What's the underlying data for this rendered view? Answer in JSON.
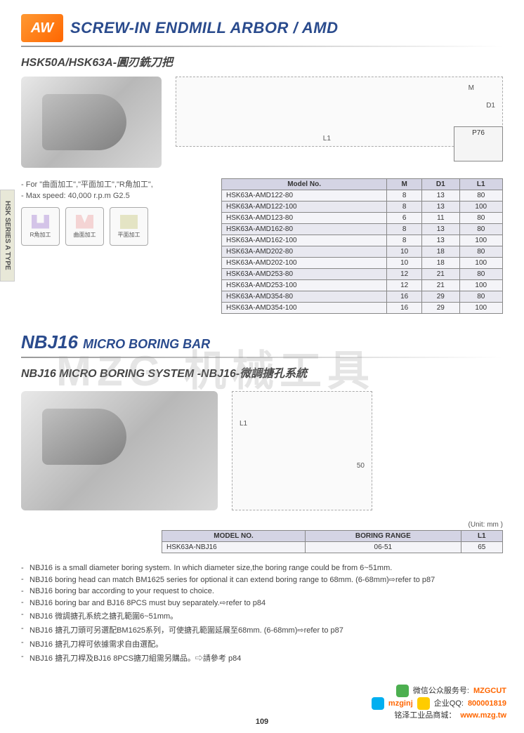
{
  "logo_text": "AW",
  "section1": {
    "title": "SCREW-IN ENDMILL ARBOR / AMD",
    "subtitle": "HSK50A/HSK63A-圓刃銑刀把",
    "dims": {
      "m": "M",
      "d1": "D1",
      "l1": "L1"
    },
    "p76": "P76",
    "notes": {
      "line1": "- For \"曲面加工\",\"平面加工\",\"R角加工\",",
      "line2": "- Max speed: 40,000 r.p.m G2.5"
    },
    "icons": {
      "a": "R角加工",
      "b": "曲面加工",
      "c": "平面加工"
    },
    "table": {
      "headers": [
        "Model No.",
        "M",
        "D1",
        "L1"
      ],
      "rows": [
        [
          "HSK63A-AMD122-80",
          "8",
          "13",
          "80"
        ],
        [
          "HSK63A-AMD122-100",
          "8",
          "13",
          "100"
        ],
        [
          "HSK63A-AMD123-80",
          "6",
          "11",
          "80"
        ],
        [
          "HSK63A-AMD162-80",
          "8",
          "13",
          "80"
        ],
        [
          "HSK63A-AMD162-100",
          "8",
          "13",
          "100"
        ],
        [
          "HSK63A-AMD202-80",
          "10",
          "18",
          "80"
        ],
        [
          "HSK63A-AMD202-100",
          "10",
          "18",
          "100"
        ],
        [
          "HSK63A-AMD253-80",
          "12",
          "21",
          "80"
        ],
        [
          "HSK63A-AMD253-100",
          "12",
          "21",
          "100"
        ],
        [
          "HSK63A-AMD354-80",
          "16",
          "29",
          "80"
        ],
        [
          "HSK63A-AMD354-100",
          "16",
          "29",
          "100"
        ]
      ]
    }
  },
  "side_tab": "HSK SERIES A TYPE",
  "section2": {
    "title_big": "NBJ16",
    "title_small": "MICRO BORING BAR",
    "subtitle": "NBJ16 MICRO BORING SYSTEM -NBJ16-微調搪孔系統",
    "dims": {
      "l1": "L1",
      "d50": "50"
    },
    "unit": "(Unit: mm )",
    "table": {
      "headers": [
        "MODEL NO.",
        "BORING RANGE",
        "L1"
      ],
      "rows": [
        [
          "HSK63A-NBJ16",
          "06-51",
          "65"
        ]
      ]
    },
    "bullets": [
      "NBJ16 is a small diameter boring system. In which diameter size,the boring range could be from 6~51mm.",
      "NBJ16 boring head can match BM1625 series for optional it can extend boring range to 68mm. (6-68mm)⇨refer to p87",
      "NBJ16 boring bar according to your request to choice.",
      "NBJ16 boring bar and BJ16 8PCS must buy separately.⇨refer to p84",
      "NBJ16 微調搪孔系統之搪孔範圍6~51mm。",
      "NBJ16 搪孔刀頭可另選配BM1625系列，可使搪孔範圍延展至68mm. (6-68mm)⇨refer to p87",
      "NBJ16 搪孔刀桿可依據需求自由選配。",
      "NBJ16 搪孔刀桿及BJ16 8PCS搪刀組需另購品。⇨請參考 p84"
    ]
  },
  "footer": {
    "wechat_label": "微信公众服务号:",
    "wechat_id": "MZGCUT",
    "qq_label": "企业QQ:",
    "skype_id": "mzginj",
    "qq_id": "800001819",
    "shop_label": "铭泽工业品商城：",
    "shop_url": "www.mzg.tw"
  },
  "page_number": "109",
  "watermark": "MZG 机械工具"
}
